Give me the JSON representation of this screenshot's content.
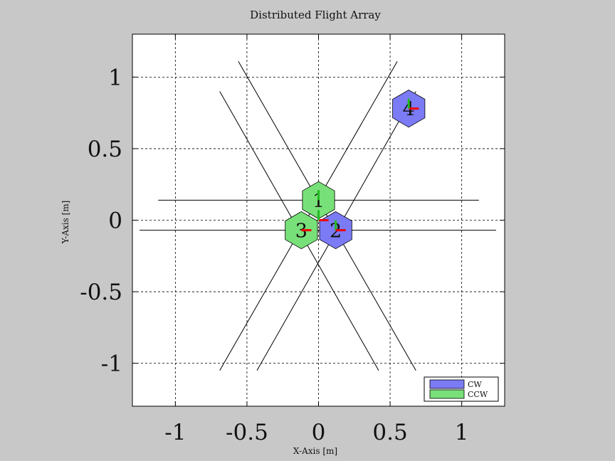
{
  "chart_data": {
    "type": "scatter",
    "title": "Distributed Flight Array",
    "xlabel": "X-Axis [m]",
    "ylabel": "Y-Axis [m]",
    "xlim": [
      -1.3,
      1.3
    ],
    "ylim": [
      -1.3,
      1.3
    ],
    "xticks": [
      -1,
      -0.5,
      0,
      0.5,
      1
    ],
    "yticks": [
      -1,
      -0.5,
      0,
      0.5,
      1
    ],
    "grid": true,
    "legend": {
      "position": "bottom-right",
      "entries": [
        {
          "label": "CW",
          "color": "#7b7bf5"
        },
        {
          "label": "CCW",
          "color": "#78e078"
        }
      ]
    },
    "hex_radius": 0.13,
    "modules": [
      {
        "id": "1",
        "x": 0.0,
        "y": 0.14,
        "spin": "CCW"
      },
      {
        "id": "2",
        "x": 0.12,
        "y": -0.07,
        "spin": "CW"
      },
      {
        "id": "3",
        "x": -0.12,
        "y": -0.07,
        "spin": "CCW"
      },
      {
        "id": "4",
        "x": 0.63,
        "y": 0.78,
        "spin": "CW"
      }
    ],
    "heading_markers": [
      {
        "x": 0.0,
        "y": 0.14,
        "angle_deg": 90,
        "color": "#22bb22",
        "length": 0.07
      },
      {
        "x": 0.12,
        "y": -0.07,
        "angle_deg": 90,
        "color": "#22bb22",
        "length": 0.07
      },
      {
        "x": 0.12,
        "y": -0.07,
        "angle_deg": 0,
        "color": "#ee0000",
        "length": 0.07
      },
      {
        "x": -0.12,
        "y": -0.07,
        "angle_deg": 0,
        "color": "#ee0000",
        "length": 0.07
      },
      {
        "x": 0.0,
        "y": 0.0,
        "angle_deg": 0,
        "color": "#ee0000",
        "length": 0.07
      },
      {
        "x": 0.0,
        "y": 0.0,
        "angle_deg": 90,
        "color": "#22bb22",
        "length": 0.07
      },
      {
        "x": 0.63,
        "y": 0.78,
        "angle_deg": 0,
        "color": "#ee0000",
        "length": 0.07
      },
      {
        "x": 0.63,
        "y": 0.78,
        "angle_deg": 90,
        "color": "#22bb22",
        "length": 0.07
      }
    ],
    "lines": [
      {
        "x": [
          -1.12,
          1.12
        ],
        "y": [
          0.14,
          0.14
        ]
      },
      {
        "x": [
          -1.25,
          1.24
        ],
        "y": [
          -0.07,
          -0.07
        ]
      },
      {
        "x": [
          -0.56,
          0.68
        ],
        "y": [
          1.11,
          -1.05
        ]
      },
      {
        "x": [
          -0.69,
          0.42
        ],
        "y": [
          0.9,
          -1.05
        ]
      },
      {
        "x": [
          0.55,
          -0.69
        ],
        "y": [
          1.11,
          -1.05
        ]
      },
      {
        "x": [
          0.68,
          -0.43
        ],
        "y": [
          0.9,
          -1.05
        ]
      }
    ],
    "colors": {
      "cw": "#7b7bf5",
      "ccw": "#78e078",
      "axes_background": "#ffffff",
      "figure_background": "#c8c8c8"
    }
  }
}
